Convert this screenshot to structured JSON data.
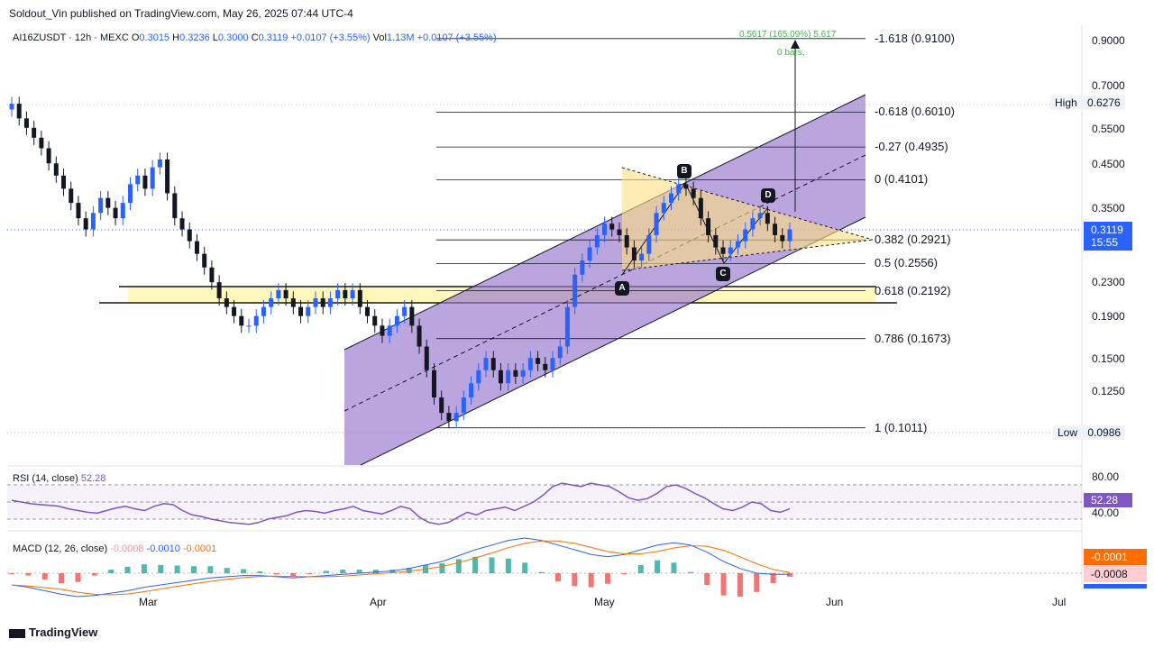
{
  "header": {
    "text": "Soldout_Vin published on TradingView.com, May 26, 2025 07:44 UTC-4"
  },
  "legend": {
    "symbol": "AI16ZUSDT · 12h · MEXC",
    "o_label": "O",
    "o": "0.3015",
    "h_label": "H",
    "h": "0.3236",
    "l_label": "L",
    "l": "0.3000",
    "c_label": "C",
    "c": "0.3119",
    "chg": "+0.0107 (+3.55%)",
    "vol_label": "Vol",
    "vol": "1.13M",
    "vol_chg": "+0.0107 (+3.55%)"
  },
  "projection": {
    "top": "0.5617 (165.09%) 5.617",
    "bars": "0 bars,"
  },
  "price_axis": [
    "0.9000",
    "0.7000",
    "0.5500",
    "0.4500",
    "0.3500",
    "0.2300",
    "0.1900",
    "0.1500",
    "0.1250"
  ],
  "high": {
    "label": "High",
    "value": "0.6276"
  },
  "low": {
    "label": "Low",
    "value": "0.0986"
  },
  "last": {
    "price": "0.3119",
    "countdown": "15:55"
  },
  "fib_levels": [
    {
      "label": "-1.618 (0.9100)",
      "price": 0.91
    },
    {
      "label": "-0.618 (0.6010)",
      "price": 0.601
    },
    {
      "label": "-0.27 (0.4935)",
      "price": 0.4935
    },
    {
      "label": "0 (0.4101)",
      "price": 0.4101
    },
    {
      "label": "0.382 (0.2921)",
      "price": 0.2921
    },
    {
      "label": "0.5 (0.2556)",
      "price": 0.2556
    },
    {
      "label": "0.618 (0.2192)",
      "price": 0.2192
    },
    {
      "label": "0.786 (0.1673)",
      "price": 0.1673
    },
    {
      "label": "1 (0.1011)",
      "price": 0.1011
    }
  ],
  "points": [
    "A",
    "B",
    "C",
    "D"
  ],
  "rsi": {
    "label": "RSI (14, close)",
    "value": "52.28",
    "axis": [
      "80.00",
      "40.00"
    ],
    "badge": "52.28"
  },
  "macd": {
    "label": "MACD (12, 26, close)",
    "hist": "-0.0008",
    "macd": "-0.0010",
    "signal": "-0.0001",
    "badge_signal": "-0.0001",
    "badge_hist": "-0.0008"
  },
  "months": [
    "Mar",
    "Apr",
    "May",
    "Jun",
    "Jul"
  ],
  "footer": {
    "brand": "TradingView"
  },
  "colors": {
    "up": "#2962ff",
    "down": "#131722",
    "channel": "#9575cd",
    "triangle": "#ffe082",
    "zone": "#fff59d",
    "rsi": "#7e57c2",
    "macd": "#2962ff",
    "signal": "#ff6d00",
    "hist_up": "#26a69a",
    "hist_down": "#ef5350",
    "last_badge": "#2962ff"
  },
  "chart_data": {
    "type": "candlestick",
    "x_start": "2025-01-30",
    "x_end": "2025-07-05",
    "y_scale": "log",
    "ylim": [
      0.09,
      0.95
    ],
    "close_series": [
      0.63,
      0.58,
      0.55,
      0.52,
      0.49,
      0.45,
      0.42,
      0.39,
      0.36,
      0.33,
      0.31,
      0.34,
      0.37,
      0.35,
      0.33,
      0.36,
      0.4,
      0.42,
      0.39,
      0.44,
      0.46,
      0.38,
      0.33,
      0.31,
      0.29,
      0.27,
      0.25,
      0.23,
      0.21,
      0.2,
      0.19,
      0.18,
      0.18,
      0.19,
      0.2,
      0.21,
      0.22,
      0.21,
      0.2,
      0.19,
      0.2,
      0.21,
      0.2,
      0.21,
      0.22,
      0.21,
      0.22,
      0.2,
      0.19,
      0.18,
      0.17,
      0.18,
      0.19,
      0.2,
      0.18,
      0.16,
      0.14,
      0.12,
      0.11,
      0.105,
      0.11,
      0.12,
      0.13,
      0.14,
      0.15,
      0.14,
      0.13,
      0.14,
      0.135,
      0.14,
      0.15,
      0.145,
      0.14,
      0.15,
      0.16,
      0.2,
      0.24,
      0.26,
      0.28,
      0.3,
      0.32,
      0.31,
      0.3,
      0.28,
      0.26,
      0.27,
      0.3,
      0.34,
      0.36,
      0.38,
      0.4,
      0.39,
      0.37,
      0.33,
      0.3,
      0.28,
      0.27,
      0.28,
      0.29,
      0.31,
      0.33,
      0.34,
      0.32,
      0.3,
      0.29,
      0.31
    ],
    "rsi_series": [
      62,
      60,
      58,
      57,
      56,
      55,
      52,
      50,
      48,
      47,
      50,
      53,
      55,
      52,
      50,
      55,
      58,
      57,
      50,
      45,
      43,
      40,
      38,
      36,
      35,
      34,
      36,
      40,
      42,
      44,
      48,
      50,
      49,
      47,
      50,
      52,
      55,
      50,
      48,
      46,
      50,
      55,
      52,
      42,
      36,
      34,
      36,
      42,
      48,
      45,
      50,
      52,
      54,
      50,
      55,
      60,
      68,
      78,
      82,
      80,
      78,
      82,
      80,
      78,
      72,
      65,
      62,
      64,
      70,
      78,
      80,
      76,
      70,
      65,
      58,
      52,
      50,
      54,
      60,
      58,
      50,
      48,
      52
    ],
    "macd_series": [
      -0.01,
      -0.012,
      -0.015,
      -0.018,
      -0.02,
      -0.019,
      -0.017,
      -0.015,
      -0.012,
      -0.01,
      -0.008,
      -0.006,
      -0.004,
      -0.003,
      -0.002,
      -0.002,
      -0.003,
      -0.004,
      -0.003,
      -0.002,
      -0.001,
      0,
      0.001,
      0.002,
      0.004,
      0.007,
      0.01,
      0.015,
      0.02,
      0.024,
      0.028,
      0.03,
      0.028,
      0.024,
      0.02,
      0.016,
      0.014,
      0.016,
      0.02,
      0.024,
      0.026,
      0.024,
      0.018,
      0.01,
      0.004,
      0,
      -0.001,
      -0.001
    ]
  }
}
